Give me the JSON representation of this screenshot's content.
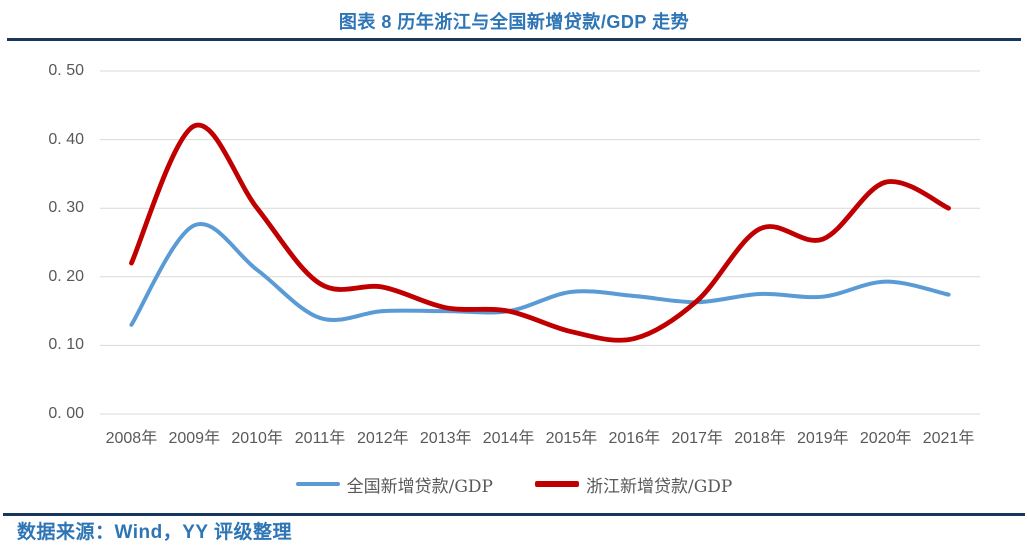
{
  "page": {
    "title": "图表 8 历年浙江与全国新增贷款/GDP 走势",
    "source": "数据来源：Wind，YY 评级整理"
  },
  "colors": {
    "accent_blue": "#2E75B6",
    "divider_navy": "#17375E",
    "grid": "#D9D9D9",
    "axis_text": "#595959",
    "series_national_blue": "#5B9BD5",
    "series_zhejiang_red": "#C00000"
  },
  "chart_data": {
    "type": "line",
    "smooth": true,
    "title": "图表 8 历年浙江与全国新增贷款/GDP 走势",
    "xlabel": "",
    "ylabel": "",
    "ylim": [
      0,
      0.5
    ],
    "grid": "horizontal",
    "legend_position": "bottom",
    "categories": [
      "2008年",
      "2009年",
      "2010年",
      "2011年",
      "2012年",
      "2013年",
      "2014年",
      "2015年",
      "2016年",
      "2017年",
      "2018年",
      "2019年",
      "2020年",
      "2021年"
    ],
    "yticks": [
      {
        "label": "0. 00",
        "value": 0.0
      },
      {
        "label": "0. 10",
        "value": 0.1
      },
      {
        "label": "0. 20",
        "value": 0.2
      },
      {
        "label": "0. 30",
        "value": 0.3
      },
      {
        "label": "0. 40",
        "value": 0.4
      },
      {
        "label": "0. 50",
        "value": 0.5
      }
    ],
    "series": [
      {
        "name": "全国新增贷款/GDP",
        "color": "#5B9BD5",
        "values": [
          0.13,
          0.275,
          0.21,
          0.14,
          0.15,
          0.15,
          0.15,
          0.178,
          0.172,
          0.163,
          0.175,
          0.171,
          0.193,
          0.174
        ]
      },
      {
        "name": "浙江新增贷款/GDP",
        "color": "#C00000",
        "values": [
          0.22,
          0.42,
          0.3,
          0.19,
          0.185,
          0.155,
          0.15,
          0.12,
          0.11,
          0.165,
          0.27,
          0.255,
          0.338,
          0.3
        ]
      }
    ]
  }
}
